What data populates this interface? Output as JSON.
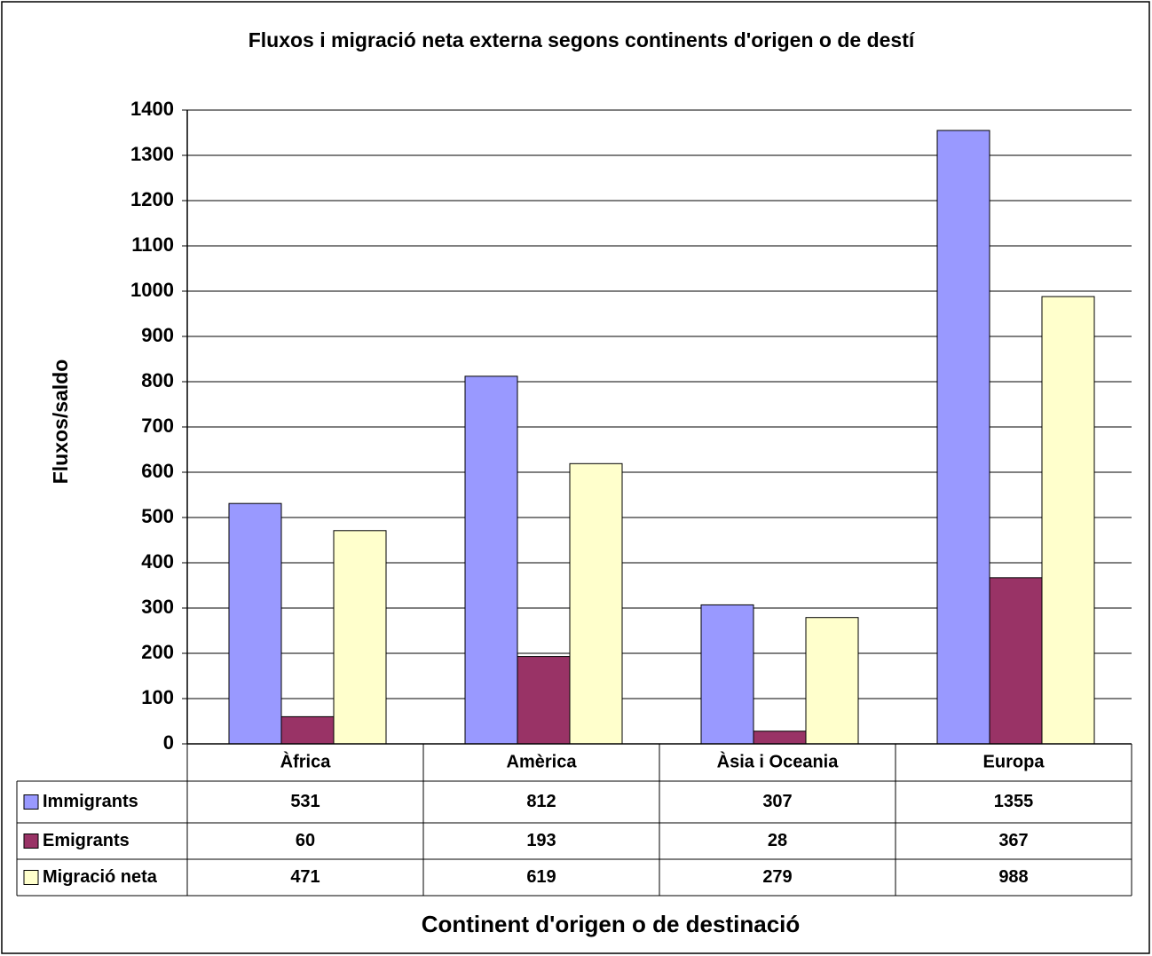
{
  "chart_data": {
    "type": "bar",
    "title": "Fluxos i migració neta externa segons continents d'origen o de destí",
    "x_label": "Continent d'origen o de destinació",
    "y_label": "Fluxos/saldo",
    "categories": [
      "Àfrica",
      "Amèrica",
      "Àsia i Oceania",
      "Europa"
    ],
    "series": [
      {
        "name": "Immigrants",
        "color": "#9999ff",
        "values": [
          531,
          812,
          307,
          1355
        ]
      },
      {
        "name": "Emigrants",
        "color": "#993366",
        "values": [
          60,
          193,
          28,
          367
        ]
      },
      {
        "name": "Migració neta",
        "color": "#ffffcc",
        "values": [
          471,
          619,
          279,
          988
        ]
      }
    ],
    "ylim": [
      0,
      1400
    ],
    "yticks": [
      0,
      100,
      200,
      300,
      400,
      500,
      600,
      700,
      800,
      900,
      1000,
      1100,
      1200,
      1300,
      1400
    ],
    "grid": true
  }
}
